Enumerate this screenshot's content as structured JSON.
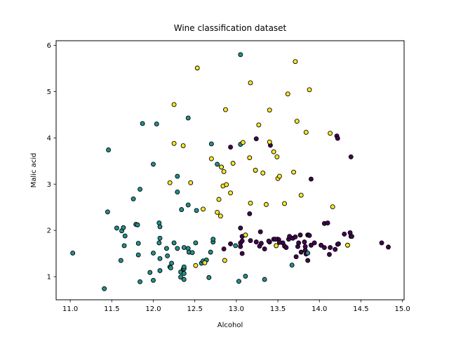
{
  "chart_data": {
    "type": "scatter",
    "title": "Wine classification dataset",
    "xlabel": "Alcohol",
    "ylabel": "Malic acid",
    "xlim": [
      10.83,
      15.02
    ],
    "ylim": [
      0.5,
      6.1
    ],
    "xticks": [
      "11.0",
      "11.5",
      "12.0",
      "12.5",
      "13.0",
      "13.5",
      "14.0",
      "14.5",
      "15.0"
    ],
    "yticks": [
      "1",
      "2",
      "3",
      "4",
      "5",
      "6"
    ],
    "grid": false,
    "marker_edge_color": "#000000",
    "series": [
      {
        "color": "#440154",
        "points": [
          [
            13.05,
            1.73
          ],
          [
            13.07,
            1.77
          ],
          [
            13.17,
            1.78
          ],
          [
            13.24,
            1.75
          ],
          [
            13.28,
            1.66
          ],
          [
            13.3,
            1.72
          ],
          [
            13.34,
            1.6
          ],
          [
            13.4,
            1.75
          ],
          [
            13.48,
            1.67
          ],
          [
            13.5,
            1.81
          ],
          [
            13.51,
            1.8
          ],
          [
            13.56,
            1.73
          ],
          [
            13.58,
            1.66
          ],
          [
            13.6,
            1.63
          ],
          [
            13.63,
            1.81
          ],
          [
            13.64,
            1.87
          ],
          [
            13.68,
            1.83
          ],
          [
            13.71,
            1.86
          ],
          [
            13.72,
            1.43
          ],
          [
            13.74,
            1.65
          ],
          [
            13.75,
            1.73
          ],
          [
            13.77,
            1.9
          ],
          [
            13.78,
            1.53
          ],
          [
            13.82,
            1.75
          ],
          [
            13.83,
            1.57
          ],
          [
            13.83,
            1.65
          ],
          [
            13.84,
            1.49
          ],
          [
            13.86,
            1.35
          ],
          [
            13.86,
            1.9
          ],
          [
            13.87,
            1.9
          ],
          [
            13.88,
            1.89
          ],
          [
            13.9,
            1.68
          ],
          [
            13.94,
            1.73
          ],
          [
            14.02,
            1.68
          ],
          [
            14.06,
            1.63
          ],
          [
            14.06,
            2.15
          ],
          [
            14.1,
            2.16
          ],
          [
            14.12,
            1.48
          ],
          [
            14.13,
            1.63
          ],
          [
            14.19,
            1.59
          ],
          [
            14.21,
            4.04
          ],
          [
            14.22,
            1.7
          ],
          [
            14.22,
            3.99
          ],
          [
            14.23,
            1.71
          ],
          [
            14.3,
            1.92
          ],
          [
            14.37,
            1.95
          ],
          [
            14.38,
            1.87
          ],
          [
            14.38,
            3.59
          ],
          [
            14.39,
            1.87
          ],
          [
            14.75,
            1.73
          ],
          [
            14.83,
            1.64
          ],
          [
            12.85,
            1.6
          ],
          [
            13.05,
            2.05
          ],
          [
            13.07,
            1.5
          ],
          [
            12.93,
            3.8
          ],
          [
            13.16,
            2.36
          ],
          [
            13.24,
            3.98
          ],
          [
            13.29,
            1.97
          ],
          [
            13.39,
            1.77
          ],
          [
            13.41,
            3.84
          ],
          [
            13.45,
            1.81
          ],
          [
            13.47,
            1.81
          ],
          [
            13.52,
            1.74
          ],
          [
            13.9,
            3.11
          ],
          [
            12.93,
            1.71
          ],
          [
            13.05,
            1.65
          ],
          [
            13.07,
            1.87
          ]
        ]
      },
      {
        "color": "#21918c",
        "points": [
          [
            11.03,
            1.51
          ],
          [
            11.41,
            0.74
          ],
          [
            11.45,
            2.4
          ],
          [
            11.46,
            3.74
          ],
          [
            11.56,
            2.05
          ],
          [
            11.61,
            1.35
          ],
          [
            11.62,
            1.99
          ],
          [
            11.64,
            2.06
          ],
          [
            11.65,
            1.67
          ],
          [
            11.66,
            1.88
          ],
          [
            11.76,
            2.68
          ],
          [
            11.79,
            2.13
          ],
          [
            11.81,
            2.12
          ],
          [
            11.82,
            1.72
          ],
          [
            11.82,
            1.47
          ],
          [
            11.84,
            2.89
          ],
          [
            11.84,
            0.89
          ],
          [
            11.87,
            4.31
          ],
          [
            11.96,
            1.09
          ],
          [
            12.0,
            0.92
          ],
          [
            12.0,
            1.51
          ],
          [
            12.0,
            3.43
          ],
          [
            12.04,
            4.3
          ],
          [
            12.07,
            2.16
          ],
          [
            12.07,
            1.73
          ],
          [
            12.08,
            1.13
          ],
          [
            12.08,
            1.83
          ],
          [
            12.08,
            1.39
          ],
          [
            12.08,
            2.08
          ],
          [
            12.16,
            1.61
          ],
          [
            12.17,
            1.45
          ],
          [
            12.2,
            1.21
          ],
          [
            12.21,
            1.19
          ],
          [
            12.22,
            1.29
          ],
          [
            12.25,
            1.73
          ],
          [
            12.29,
            1.61
          ],
          [
            12.29,
            2.83
          ],
          [
            12.29,
            3.17
          ],
          [
            12.33,
            1.1
          ],
          [
            12.33,
            0.99
          ],
          [
            12.34,
            2.45
          ],
          [
            12.36,
            1.16
          ],
          [
            12.37,
            1.17
          ],
          [
            12.37,
            1.07
          ],
          [
            12.37,
            1.63
          ],
          [
            12.37,
            1.21
          ],
          [
            12.37,
            0.94
          ],
          [
            12.42,
            2.55
          ],
          [
            12.42,
            4.43
          ],
          [
            12.42,
            1.61
          ],
          [
            12.43,
            1.53
          ],
          [
            12.47,
            1.52
          ],
          [
            12.51,
            1.73
          ],
          [
            12.52,
            2.43
          ],
          [
            12.58,
            1.29
          ],
          [
            12.6,
            1.34
          ],
          [
            12.64,
            1.36
          ],
          [
            12.67,
            0.98
          ],
          [
            12.69,
            1.53
          ],
          [
            12.7,
            3.87
          ],
          [
            12.72,
            1.75
          ],
          [
            12.72,
            1.81
          ],
          [
            12.77,
            3.43
          ],
          [
            12.99,
            1.67
          ],
          [
            13.03,
            0.9
          ],
          [
            13.05,
            5.8
          ],
          [
            13.05,
            3.86
          ],
          [
            13.11,
            1.01
          ],
          [
            13.34,
            0.94
          ],
          [
            13.67,
            1.25
          ],
          [
            13.86,
            1.51
          ],
          [
            12.82,
            3.37
          ]
        ]
      },
      {
        "color": "#fde725",
        "points": [
          [
            12.2,
            3.03
          ],
          [
            12.25,
            4.72
          ],
          [
            12.25,
            3.88
          ],
          [
            12.36,
            3.83
          ],
          [
            12.45,
            3.03
          ],
          [
            12.51,
            1.24
          ],
          [
            12.53,
            5.51
          ],
          [
            12.6,
            2.46
          ],
          [
            12.7,
            3.55
          ],
          [
            12.77,
            2.39
          ],
          [
            12.79,
            2.67
          ],
          [
            12.81,
            2.31
          ],
          [
            12.82,
            3.37
          ],
          [
            12.84,
            2.96
          ],
          [
            12.85,
            3.27
          ],
          [
            12.86,
            1.35
          ],
          [
            12.87,
            4.61
          ],
          [
            12.88,
            2.99
          ],
          [
            12.93,
            2.81
          ],
          [
            12.96,
            3.45
          ],
          [
            13.08,
            3.9
          ],
          [
            13.11,
            1.9
          ],
          [
            13.16,
            3.57
          ],
          [
            13.17,
            5.19
          ],
          [
            13.17,
            2.59
          ],
          [
            13.23,
            3.3
          ],
          [
            13.27,
            4.28
          ],
          [
            13.32,
            3.24
          ],
          [
            13.36,
            2.56
          ],
          [
            13.4,
            3.91
          ],
          [
            13.4,
            4.6
          ],
          [
            13.45,
            3.7
          ],
          [
            13.48,
            1.67
          ],
          [
            13.49,
            3.59
          ],
          [
            13.5,
            3.12
          ],
          [
            13.52,
            3.17
          ],
          [
            13.58,
            2.58
          ],
          [
            13.62,
            4.95
          ],
          [
            13.69,
            3.26
          ],
          [
            13.71,
            5.65
          ],
          [
            13.73,
            4.36
          ],
          [
            13.78,
            2.76
          ],
          [
            13.84,
            4.12
          ],
          [
            13.88,
            5.04
          ],
          [
            14.13,
            4.1
          ],
          [
            14.16,
            2.51
          ],
          [
            14.34,
            1.68
          ],
          [
            12.62,
            1.3
          ]
        ]
      }
    ]
  }
}
